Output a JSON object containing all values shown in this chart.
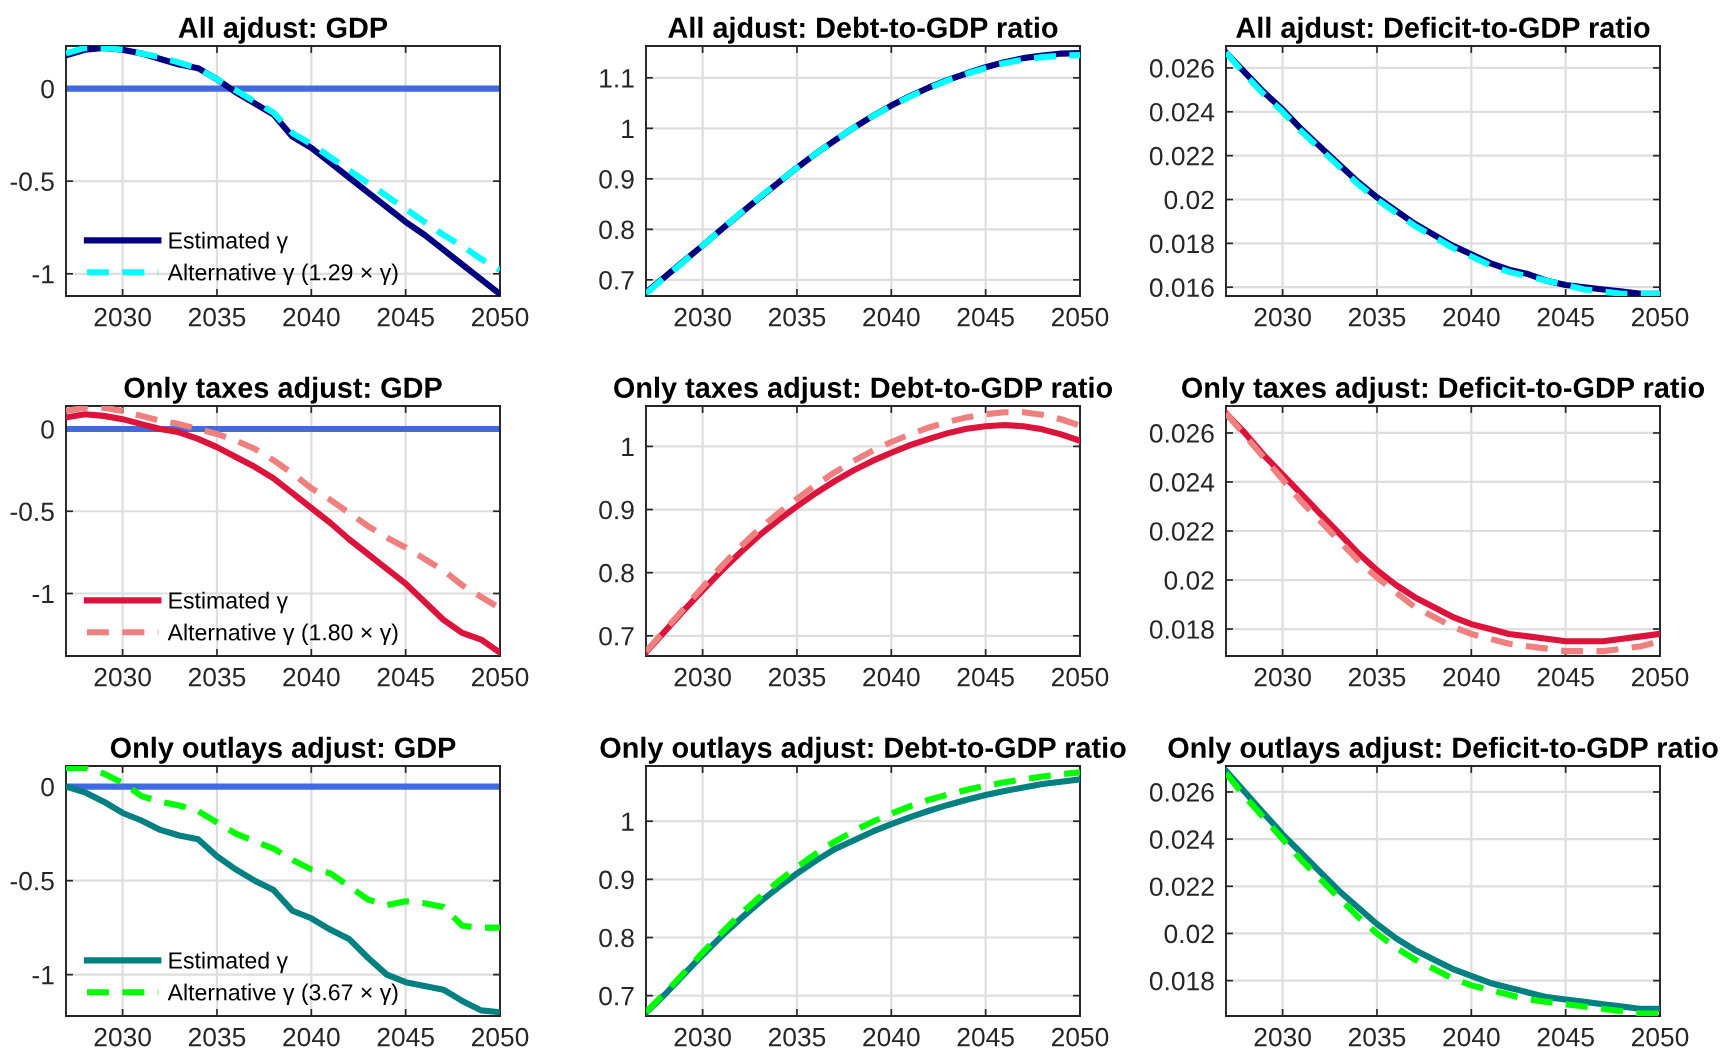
{
  "chart_data": [
    {
      "type": "line",
      "title": "All ajdust: GDP",
      "x": [
        2027,
        2028,
        2029,
        2030,
        2031,
        2032,
        2033,
        2034,
        2035,
        2036,
        2037,
        2038,
        2039,
        2040,
        2041,
        2042,
        2043,
        2044,
        2045,
        2046,
        2047,
        2048,
        2049,
        2050
      ],
      "xlim": [
        2027,
        2050
      ],
      "xticks": [
        2030,
        2035,
        2040,
        2045,
        2050
      ],
      "ylim": [
        -1.12,
        0.23
      ],
      "yticks": [
        -1,
        -0.5,
        0
      ],
      "grid": true,
      "legend": "bottom left",
      "ref_lines": [
        {
          "axis": "y",
          "value": 0,
          "color": "#4169e1"
        }
      ],
      "series": [
        {
          "name": "Estimated γ",
          "color": "#000080",
          "line_style": "solid",
          "values": [
            0.18,
            0.21,
            0.22,
            0.21,
            0.19,
            0.16,
            0.13,
            0.11,
            0.05,
            -0.02,
            -0.08,
            -0.14,
            -0.26,
            -0.32,
            -0.4,
            -0.48,
            -0.56,
            -0.64,
            -0.72,
            -0.79,
            -0.87,
            -0.95,
            -1.03,
            -1.11
          ]
        },
        {
          "name": "Alternative γ (1.29 × γ)",
          "color": "#00ffff",
          "line_style": "dashed",
          "values": [
            0.19,
            0.22,
            0.22,
            0.21,
            0.19,
            0.17,
            0.14,
            0.11,
            0.05,
            -0.01,
            -0.07,
            -0.13,
            -0.24,
            -0.3,
            -0.37,
            -0.44,
            -0.51,
            -0.58,
            -0.65,
            -0.72,
            -0.79,
            -0.85,
            -0.92,
            -0.98
          ]
        }
      ]
    },
    {
      "type": "line",
      "title": "All ajdust: Debt-to-GDP ratio",
      "x": [
        2027,
        2028,
        2029,
        2030,
        2031,
        2032,
        2033,
        2034,
        2035,
        2036,
        2037,
        2038,
        2039,
        2040,
        2041,
        2042,
        2043,
        2044,
        2045,
        2046,
        2047,
        2048,
        2049,
        2050
      ],
      "xlim": [
        2027,
        2050
      ],
      "xticks": [
        2030,
        2035,
        2040,
        2045,
        2050
      ],
      "ylim": [
        0.668,
        1.163
      ],
      "yticks": [
        0.7,
        0.8,
        0.9,
        1,
        1.1
      ],
      "grid": true,
      "series": [
        {
          "color": "#000080",
          "line_style": "solid",
          "values": [
            0.675,
            0.706,
            0.737,
            0.768,
            0.8,
            0.831,
            0.862,
            0.892,
            0.922,
            0.95,
            0.976,
            1.001,
            1.024,
            1.045,
            1.064,
            1.081,
            1.096,
            1.109,
            1.121,
            1.131,
            1.139,
            1.144,
            1.148,
            1.149
          ]
        },
        {
          "color": "#00ffff",
          "line_style": "dashed",
          "values": [
            0.673,
            0.705,
            0.736,
            0.768,
            0.8,
            0.832,
            0.863,
            0.893,
            0.922,
            0.95,
            0.976,
            1.001,
            1.024,
            1.044,
            1.063,
            1.08,
            1.095,
            1.108,
            1.119,
            1.129,
            1.136,
            1.141,
            1.144,
            1.145
          ]
        }
      ]
    },
    {
      "type": "line",
      "title": "All ajdust: Deficit-to-GDP ratio",
      "x": [
        2027,
        2028,
        2029,
        2030,
        2031,
        2032,
        2033,
        2034,
        2035,
        2036,
        2037,
        2038,
        2039,
        2040,
        2041,
        2042,
        2043,
        2044,
        2045,
        2046,
        2047,
        2048,
        2049,
        2050
      ],
      "xlim": [
        2027,
        2050
      ],
      "xticks": [
        2030,
        2035,
        2040,
        2045,
        2050
      ],
      "ylim": [
        0.0156,
        0.027
      ],
      "yticks": [
        0.016,
        0.018,
        0.02,
        0.022,
        0.024,
        0.026
      ],
      "grid": true,
      "series": [
        {
          "color": "#000080",
          "line_style": "solid",
          "values": [
            0.0267,
            0.0258,
            0.0249,
            0.0241,
            0.0232,
            0.0224,
            0.0216,
            0.0208,
            0.0201,
            0.0195,
            0.0189,
            0.0184,
            0.0179,
            0.0175,
            0.0171,
            0.0168,
            0.0166,
            0.0163,
            0.0161,
            0.016,
            0.0159,
            0.0158,
            0.0157,
            0.0157
          ]
        },
        {
          "color": "#00ffff",
          "line_style": "dashed",
          "values": [
            0.0267,
            0.0257,
            0.0248,
            0.024,
            0.0231,
            0.0223,
            0.0215,
            0.0207,
            0.02,
            0.0194,
            0.0188,
            0.0183,
            0.0178,
            0.0174,
            0.017,
            0.0167,
            0.0165,
            0.0163,
            0.0161,
            0.0159,
            0.0158,
            0.0157,
            0.0157,
            0.0157
          ]
        }
      ]
    },
    {
      "type": "line",
      "title": "Only taxes adjust: GDP",
      "x": [
        2027,
        2028,
        2029,
        2030,
        2031,
        2032,
        2033,
        2034,
        2035,
        2036,
        2037,
        2038,
        2039,
        2040,
        2041,
        2042,
        2043,
        2044,
        2045,
        2046,
        2047,
        2048,
        2049,
        2050
      ],
      "xlim": [
        2027,
        2050
      ],
      "xticks": [
        2030,
        2035,
        2040,
        2045,
        2050
      ],
      "ylim": [
        -1.38,
        0.14
      ],
      "yticks": [
        -1,
        -0.5,
        0
      ],
      "grid": true,
      "legend": "bottom left",
      "ref_lines": [
        {
          "axis": "y",
          "value": 0,
          "color": "#4169e1"
        }
      ],
      "series": [
        {
          "name": "Estimated γ",
          "color": "#dc143c",
          "line_style": "solid",
          "values": [
            0.07,
            0.09,
            0.08,
            0.06,
            0.03,
            0.0,
            -0.02,
            -0.06,
            -0.11,
            -0.17,
            -0.23,
            -0.3,
            -0.39,
            -0.48,
            -0.57,
            -0.67,
            -0.76,
            -0.85,
            -0.94,
            -1.05,
            -1.16,
            -1.24,
            -1.28,
            -1.36
          ]
        },
        {
          "name": "Alternative γ (1.80 × γ)",
          "color": "#f08080",
          "line_style": "dashed",
          "values": [
            0.11,
            0.13,
            0.13,
            0.11,
            0.08,
            0.05,
            0.03,
            0.0,
            -0.03,
            -0.07,
            -0.12,
            -0.19,
            -0.27,
            -0.36,
            -0.43,
            -0.51,
            -0.59,
            -0.66,
            -0.72,
            -0.79,
            -0.86,
            -0.95,
            -1.02,
            -1.09
          ]
        }
      ]
    },
    {
      "type": "line",
      "title": "Only taxes adjust: Debt-to-GDP ratio",
      "x": [
        2027,
        2028,
        2029,
        2030,
        2031,
        2032,
        2033,
        2034,
        2035,
        2036,
        2037,
        2038,
        2039,
        2040,
        2041,
        2042,
        2043,
        2044,
        2045,
        2046,
        2047,
        2048,
        2049,
        2050
      ],
      "xlim": [
        2027,
        2050
      ],
      "xticks": [
        2030,
        2035,
        2040,
        2045,
        2050
      ],
      "ylim": [
        0.668,
        1.064
      ],
      "yticks": [
        0.7,
        0.8,
        0.9,
        1
      ],
      "grid": true,
      "series": [
        {
          "color": "#dc143c",
          "line_style": "solid",
          "values": [
            0.674,
            0.707,
            0.74,
            0.772,
            0.803,
            0.832,
            0.859,
            0.883,
            0.905,
            0.926,
            0.945,
            0.962,
            0.977,
            0.99,
            1.002,
            1.012,
            1.021,
            1.028,
            1.032,
            1.034,
            1.032,
            1.027,
            1.019,
            1.009
          ]
        },
        {
          "color": "#f08080",
          "line_style": "dashed",
          "values": [
            0.675,
            0.709,
            0.743,
            0.777,
            0.81,
            0.841,
            0.869,
            0.894,
            0.917,
            0.939,
            0.959,
            0.977,
            0.993,
            1.007,
            1.019,
            1.03,
            1.039,
            1.046,
            1.051,
            1.054,
            1.054,
            1.05,
            1.043,
            1.033
          ]
        }
      ]
    },
    {
      "type": "line",
      "title": "Only taxes adjust: Deficit-to-GDP ratio",
      "x": [
        2027,
        2028,
        2029,
        2030,
        2031,
        2032,
        2033,
        2034,
        2035,
        2036,
        2037,
        2038,
        2039,
        2040,
        2041,
        2042,
        2043,
        2044,
        2045,
        2046,
        2047,
        2048,
        2049,
        2050
      ],
      "xlim": [
        2027,
        2050
      ],
      "xticks": [
        2030,
        2035,
        2040,
        2045,
        2050
      ],
      "ylim": [
        0.0169,
        0.0271
      ],
      "yticks": [
        0.018,
        0.02,
        0.022,
        0.024,
        0.026
      ],
      "grid": true,
      "series": [
        {
          "color": "#dc143c",
          "line_style": "solid",
          "values": [
            0.0268,
            0.026,
            0.0251,
            0.0243,
            0.0235,
            0.0227,
            0.0219,
            0.0211,
            0.0204,
            0.0198,
            0.0193,
            0.0189,
            0.0185,
            0.0182,
            0.018,
            0.0178,
            0.0177,
            0.0176,
            0.0175,
            0.0175,
            0.0175,
            0.0176,
            0.0177,
            0.0178
          ]
        },
        {
          "color": "#f08080",
          "line_style": "dashed",
          "values": [
            0.0268,
            0.0259,
            0.025,
            0.0241,
            0.0232,
            0.0224,
            0.0216,
            0.0208,
            0.0201,
            0.0195,
            0.0189,
            0.0185,
            0.0181,
            0.0178,
            0.0176,
            0.0174,
            0.0173,
            0.0172,
            0.0171,
            0.0171,
            0.0171,
            0.0172,
            0.0173,
            0.0175
          ]
        }
      ]
    },
    {
      "type": "line",
      "title": "Only outlays adjust: GDP",
      "x": [
        2027,
        2028,
        2029,
        2030,
        2031,
        2032,
        2033,
        2034,
        2035,
        2036,
        2037,
        2038,
        2039,
        2040,
        2041,
        2042,
        2043,
        2044,
        2045,
        2046,
        2047,
        2048,
        2049,
        2050
      ],
      "xlim": [
        2027,
        2050
      ],
      "xticks": [
        2030,
        2035,
        2040,
        2045,
        2050
      ],
      "ylim": [
        -1.22,
        0.11
      ],
      "yticks": [
        -1,
        -0.5,
        0
      ],
      "grid": true,
      "legend": "bottom left",
      "ref_lines": [
        {
          "axis": "y",
          "value": 0,
          "color": "#4169e1"
        }
      ],
      "series": [
        {
          "name": "Estimated γ",
          "color": "#008080",
          "line_style": "solid",
          "values": [
            0.0,
            -0.03,
            -0.08,
            -0.14,
            -0.18,
            -0.23,
            -0.26,
            -0.28,
            -0.37,
            -0.44,
            -0.5,
            -0.55,
            -0.66,
            -0.7,
            -0.76,
            -0.81,
            -0.91,
            -1.0,
            -1.04,
            -1.06,
            -1.08,
            -1.14,
            -1.19,
            -1.2
          ]
        },
        {
          "name": "Alternative γ (3.67 × γ)",
          "color": "#00ff00",
          "line_style": "dashed",
          "values": [
            0.1,
            0.1,
            0.07,
            0.02,
            -0.05,
            -0.08,
            -0.1,
            -0.13,
            -0.19,
            -0.25,
            -0.29,
            -0.33,
            -0.39,
            -0.44,
            -0.46,
            -0.53,
            -0.6,
            -0.63,
            -0.61,
            -0.62,
            -0.64,
            -0.74,
            -0.75,
            -0.75
          ]
        }
      ]
    },
    {
      "type": "line",
      "title": "Only outlays adjust: Debt-to-GDP ratio",
      "x": [
        2027,
        2028,
        2029,
        2030,
        2031,
        2032,
        2033,
        2034,
        2035,
        2036,
        2037,
        2038,
        2039,
        2040,
        2041,
        2042,
        2043,
        2044,
        2045,
        2046,
        2047,
        2048,
        2049,
        2050
      ],
      "xlim": [
        2027,
        2050
      ],
      "xticks": [
        2030,
        2035,
        2040,
        2045,
        2050
      ],
      "ylim": [
        0.665,
        1.095
      ],
      "yticks": [
        0.7,
        0.8,
        0.9,
        1
      ],
      "grid": true,
      "series": [
        {
          "color": "#008080",
          "line_style": "solid",
          "values": [
            0.671,
            0.702,
            0.736,
            0.77,
            0.802,
            0.832,
            0.86,
            0.886,
            0.91,
            0.932,
            0.952,
            0.967,
            0.982,
            0.995,
            1.007,
            1.018,
            1.028,
            1.037,
            1.045,
            1.052,
            1.058,
            1.064,
            1.068,
            1.072
          ]
        },
        {
          "color": "#00ff00",
          "line_style": "dashed",
          "values": [
            0.672,
            0.704,
            0.739,
            0.774,
            0.808,
            0.84,
            0.869,
            0.896,
            0.921,
            0.944,
            0.965,
            0.983,
            0.999,
            1.013,
            1.026,
            1.037,
            1.046,
            1.054,
            1.061,
            1.067,
            1.072,
            1.077,
            1.081,
            1.084
          ]
        }
      ]
    },
    {
      "type": "line",
      "title": "Only outlays adjust: Deficit-to-GDP ratio",
      "x": [
        2027,
        2028,
        2029,
        2030,
        2031,
        2032,
        2033,
        2034,
        2035,
        2036,
        2037,
        2038,
        2039,
        2040,
        2041,
        2042,
        2043,
        2044,
        2045,
        2046,
        2047,
        2048,
        2049,
        2050
      ],
      "xlim": [
        2027,
        2050
      ],
      "xticks": [
        2030,
        2035,
        2040,
        2045,
        2050
      ],
      "ylim": [
        0.0165,
        0.0271
      ],
      "yticks": [
        0.018,
        0.02,
        0.022,
        0.024,
        0.026
      ],
      "grid": true,
      "series": [
        {
          "color": "#008080",
          "line_style": "solid",
          "values": [
            0.0269,
            0.026,
            0.0251,
            0.0242,
            0.0234,
            0.0226,
            0.0218,
            0.0211,
            0.0204,
            0.0198,
            0.0193,
            0.0189,
            0.0185,
            0.0182,
            0.0179,
            0.0177,
            0.0175,
            0.0173,
            0.0172,
            0.0171,
            0.017,
            0.0169,
            0.0168,
            0.0168
          ]
        },
        {
          "color": "#00ff00",
          "line_style": "dashed",
          "values": [
            0.0268,
            0.0258,
            0.0249,
            0.024,
            0.0231,
            0.0223,
            0.0215,
            0.0207,
            0.02,
            0.0194,
            0.0189,
            0.0185,
            0.0181,
            0.0178,
            0.0176,
            0.0174,
            0.0172,
            0.0171,
            0.017,
            0.0169,
            0.0168,
            0.0167,
            0.0166,
            0.0166
          ]
        }
      ]
    }
  ]
}
